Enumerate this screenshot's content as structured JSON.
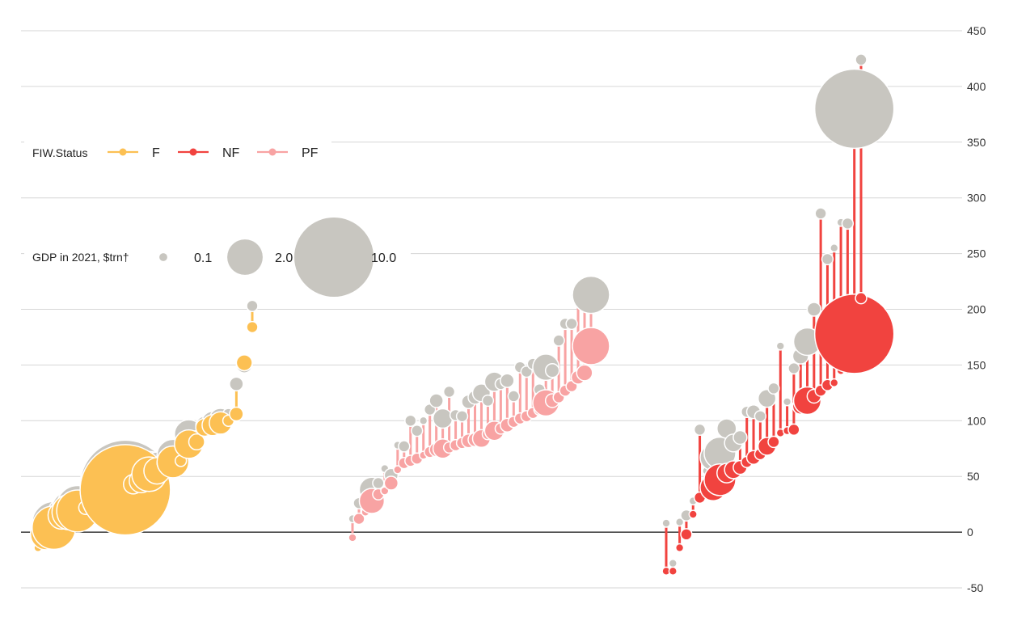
{
  "chart_data": {
    "type": "dumbbell",
    "y_ticks": [
      "450",
      "400",
      "350",
      "300",
      "250",
      "200",
      "150",
      "100",
      "50",
      "0",
      "-50"
    ],
    "ylim": [
      -50,
      450
    ],
    "grid": true,
    "legend_status": {
      "title": "FIW.Status",
      "items": [
        {
          "key": "F",
          "label": "F",
          "color": "#fcc053"
        },
        {
          "key": "NF",
          "label": "NF",
          "color": "#f1433f"
        },
        {
          "key": "PF",
          "label": "PF",
          "color": "#f8a3a3"
        }
      ]
    },
    "legend_size": {
      "title": "GDP in 2021, $trn†",
      "items": [
        {
          "label": "0.1",
          "gdp": 0.1
        },
        {
          "label": "2.0",
          "gdp": 2.0
        },
        {
          "label": "10.0",
          "gdp": 10.0
        }
      ]
    },
    "base_color": "#c8c6c0",
    "groups": [
      {
        "status": "F",
        "points": [
          {
            "a": -14,
            "b": -10,
            "g": 0.1
          },
          {
            "a": -2,
            "b": -1,
            "g": 1.5
          },
          {
            "a": 4,
            "b": 8,
            "g": 3.0
          },
          {
            "a": 15,
            "b": 18,
            "g": 1.2
          },
          {
            "a": 18,
            "b": 21,
            "g": 2.0
          },
          {
            "a": 19,
            "b": 23,
            "g": 2.8
          },
          {
            "a": 22,
            "b": 25,
            "g": 0.3
          },
          {
            "a": 24,
            "b": 27,
            "g": 0.5
          },
          {
            "a": 25,
            "b": 28,
            "g": 0.8
          },
          {
            "a": 26,
            "b": 29,
            "g": 3.3
          },
          {
            "a": 29,
            "b": 31,
            "g": 0.9
          },
          {
            "a": 38,
            "b": 42,
            "g": 13.0
          },
          {
            "a": 43,
            "b": 45,
            "g": 0.6
          },
          {
            "a": 46,
            "b": 50,
            "g": 0.9
          },
          {
            "a": 52,
            "b": 57,
            "g": 1.9
          },
          {
            "a": 55,
            "b": 60,
            "g": 1.1
          },
          {
            "a": 62,
            "b": 68,
            "g": 0.4
          },
          {
            "a": 63,
            "b": 69,
            "g": 1.6
          },
          {
            "a": 64,
            "b": 67,
            "g": 0.2
          },
          {
            "a": 79,
            "b": 88,
            "g": 1.3
          },
          {
            "a": 81,
            "b": 84,
            "g": 0.4
          },
          {
            "a": 94,
            "b": 96,
            "g": 0.5
          },
          {
            "a": 96,
            "b": 99,
            "g": 0.7
          },
          {
            "a": 98,
            "b": 101,
            "g": 0.8
          },
          {
            "a": 100,
            "b": 106,
            "g": 0.2
          },
          {
            "a": 106,
            "b": 133,
            "g": 0.3
          },
          {
            "a": 152,
            "b": 150,
            "g": 0.4
          },
          {
            "a": 184,
            "b": 203,
            "g": 0.2
          }
        ]
      },
      {
        "status": "PF",
        "points": [
          {
            "a": -5,
            "b": 12,
            "g": 0.1
          },
          {
            "a": 12,
            "b": 26,
            "g": 0.2
          },
          {
            "a": 18,
            "b": 20,
            "g": 0.1
          },
          {
            "a": 28,
            "b": 38,
            "g": 1.0
          },
          {
            "a": 34,
            "b": 44,
            "g": 0.2
          },
          {
            "a": 37,
            "b": 57,
            "g": 0.1
          },
          {
            "a": 44,
            "b": 51,
            "g": 0.3
          },
          {
            "a": 56,
            "b": 78,
            "g": 0.1
          },
          {
            "a": 62,
            "b": 77,
            "g": 0.2
          },
          {
            "a": 64,
            "b": 100,
            "g": 0.2
          },
          {
            "a": 66,
            "b": 91,
            "g": 0.2
          },
          {
            "a": 69,
            "b": 100,
            "g": 0.1
          },
          {
            "a": 72,
            "b": 110,
            "g": 0.2
          },
          {
            "a": 74,
            "b": 118,
            "g": 0.3
          },
          {
            "a": 75,
            "b": 102,
            "g": 0.6
          },
          {
            "a": 76,
            "b": 126,
            "g": 0.2
          },
          {
            "a": 78,
            "b": 105,
            "g": 0.2
          },
          {
            "a": 80,
            "b": 104,
            "g": 0.2
          },
          {
            "a": 82,
            "b": 117,
            "g": 0.3
          },
          {
            "a": 83,
            "b": 121,
            "g": 0.3
          },
          {
            "a": 84,
            "b": 125,
            "g": 0.5
          },
          {
            "a": 88,
            "b": 118,
            "g": 0.2
          },
          {
            "a": 91,
            "b": 135,
            "g": 0.6
          },
          {
            "a": 93,
            "b": 133,
            "g": 0.2
          },
          {
            "a": 96,
            "b": 136,
            "g": 0.3
          },
          {
            "a": 99,
            "b": 122,
            "g": 0.2
          },
          {
            "a": 102,
            "b": 148,
            "g": 0.2
          },
          {
            "a": 104,
            "b": 144,
            "g": 0.2
          },
          {
            "a": 107,
            "b": 151,
            "g": 0.2
          },
          {
            "a": 110,
            "b": 128,
            "g": 0.2
          },
          {
            "a": 116,
            "b": 148,
            "g": 1.1
          },
          {
            "a": 118,
            "b": 145,
            "g": 0.3
          },
          {
            "a": 121,
            "b": 172,
            "g": 0.2
          },
          {
            "a": 127,
            "b": 187,
            "g": 0.2
          },
          {
            "a": 131,
            "b": 187,
            "g": 0.2
          },
          {
            "a": 139,
            "b": 212,
            "g": 0.3
          },
          {
            "a": 143,
            "b": 213,
            "g": 0.4
          },
          {
            "a": 167,
            "b": 213,
            "g": 2.2
          }
        ]
      },
      {
        "status": "NF",
        "points": [
          {
            "a": -35,
            "b": 8,
            "g": 0.1
          },
          {
            "a": -35,
            "b": -28,
            "g": 0.1
          },
          {
            "a": -14,
            "b": 9,
            "g": 0.1
          },
          {
            "a": -2,
            "b": 15,
            "g": 0.2
          },
          {
            "a": 16,
            "b": 28,
            "g": 0.1
          },
          {
            "a": 31,
            "b": 92,
            "g": 0.2
          },
          {
            "a": 37,
            "b": 55,
            "g": 0.1
          },
          {
            "a": 40,
            "b": 67,
            "g": 1.1
          },
          {
            "a": 47,
            "b": 71,
            "g": 1.6
          },
          {
            "a": 53,
            "b": 93,
            "g": 0.6
          },
          {
            "a": 56,
            "b": 80,
            "g": 0.5
          },
          {
            "a": 58,
            "b": 85,
            "g": 0.3
          },
          {
            "a": 63,
            "b": 108,
            "g": 0.2
          },
          {
            "a": 67,
            "b": 108,
            "g": 0.3
          },
          {
            "a": 70,
            "b": 104,
            "g": 0.2
          },
          {
            "a": 77,
            "b": 120,
            "g": 0.5
          },
          {
            "a": 81,
            "b": 129,
            "g": 0.2
          },
          {
            "a": 89,
            "b": 167,
            "g": 0.1
          },
          {
            "a": 91,
            "b": 117,
            "g": 0.1
          },
          {
            "a": 92,
            "b": 147,
            "g": 0.2
          },
          {
            "a": 113,
            "b": 158,
            "g": 0.4
          },
          {
            "a": 118,
            "b": 171,
            "g": 1.2
          },
          {
            "a": 122,
            "b": 200,
            "g": 0.3
          },
          {
            "a": 127,
            "b": 286,
            "g": 0.2
          },
          {
            "a": 132,
            "b": 245,
            "g": 0.2
          },
          {
            "a": 134,
            "b": 255,
            "g": 0.1
          },
          {
            "a": 145,
            "b": 278,
            "g": 0.1
          },
          {
            "a": 147,
            "b": 277,
            "g": 0.2
          },
          {
            "a": 178,
            "b": 380,
            "g": 10.0
          },
          {
            "a": 210,
            "b": 424,
            "g": 0.2
          }
        ]
      }
    ]
  }
}
